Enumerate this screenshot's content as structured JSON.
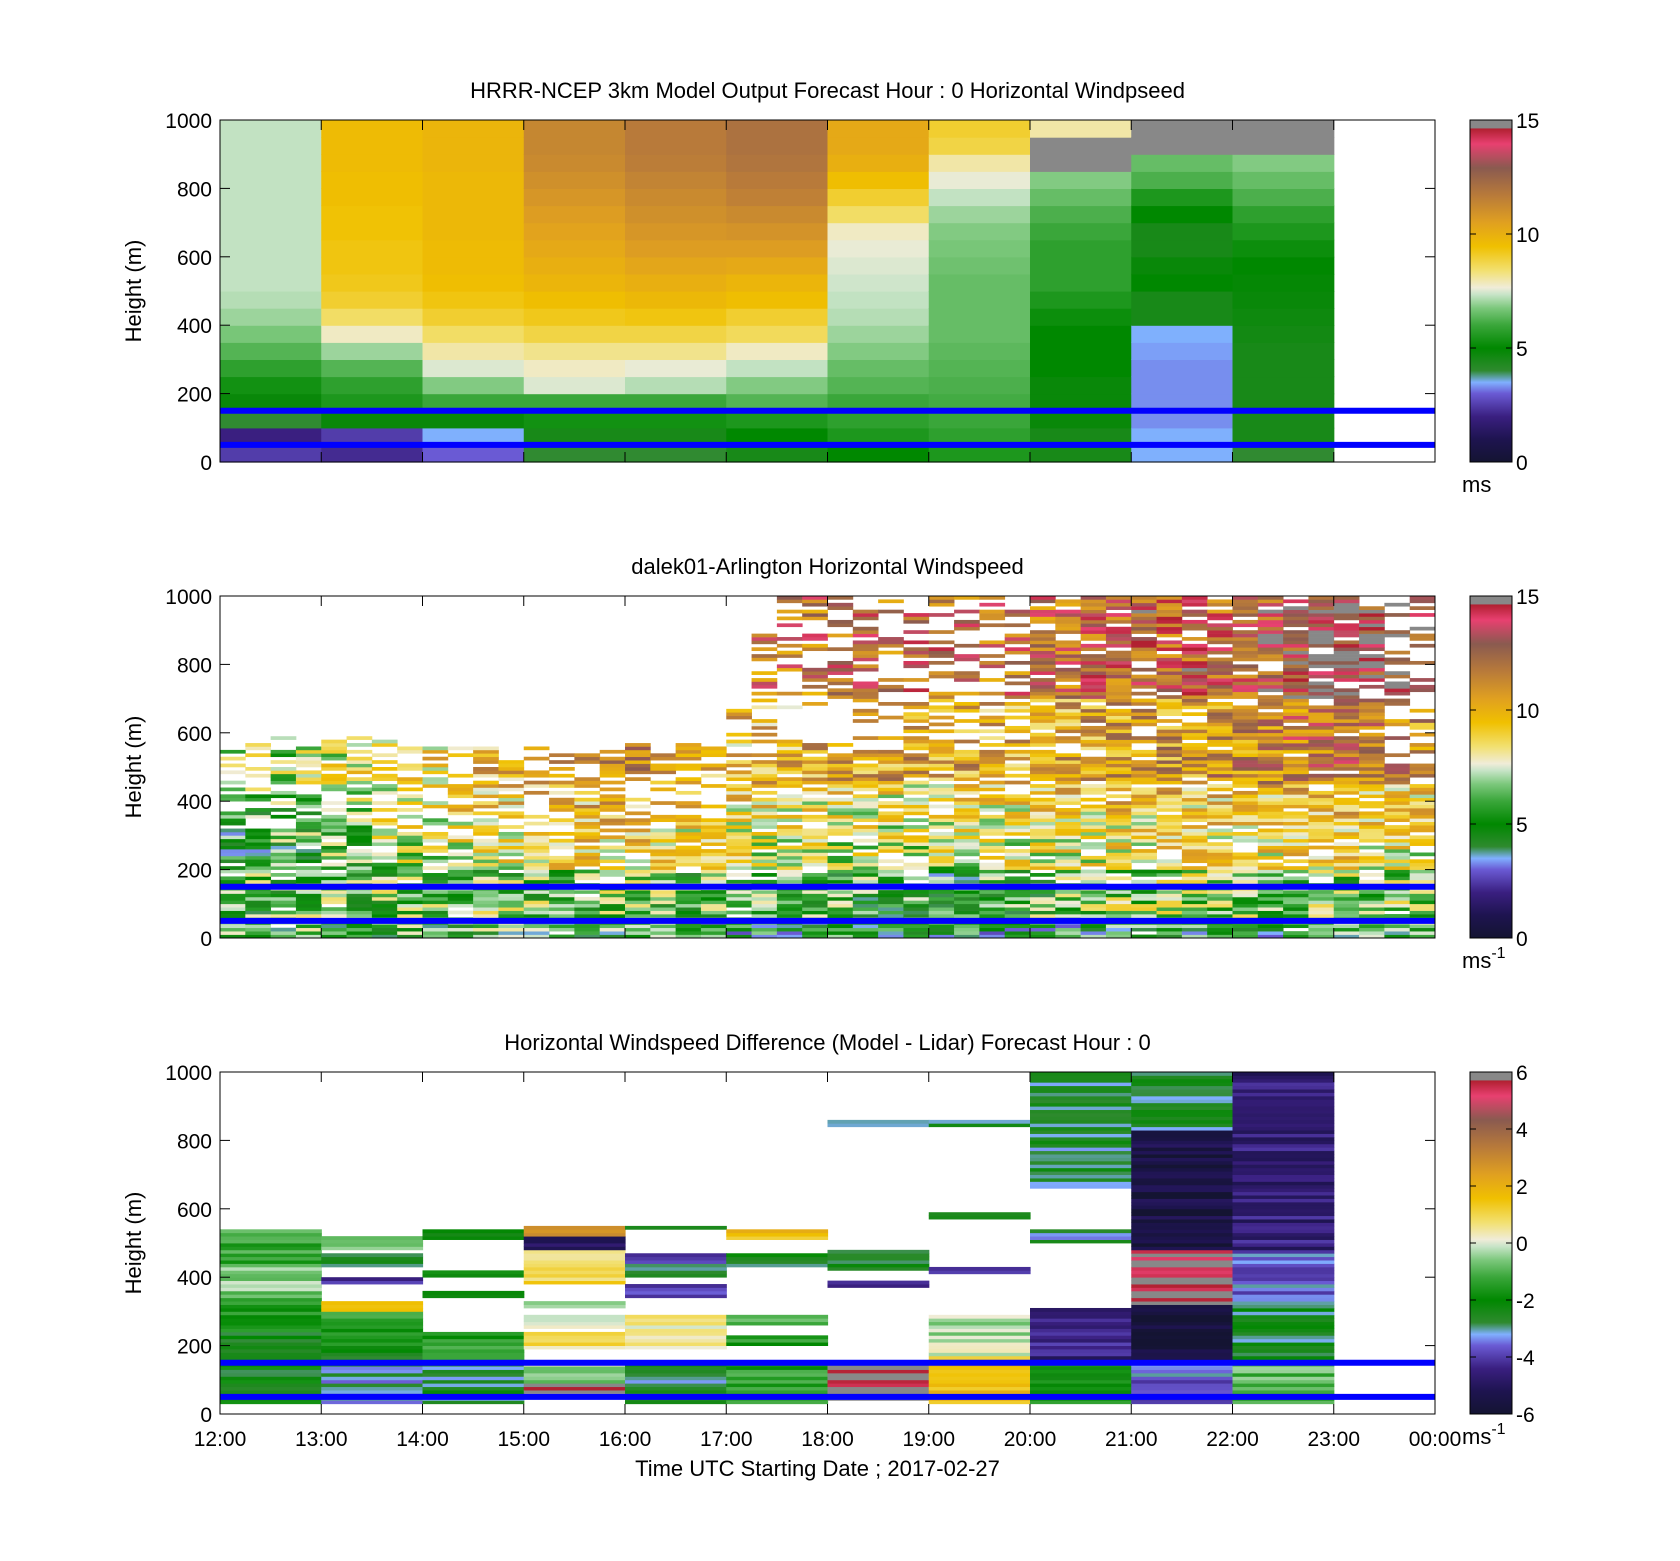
{
  "colors": {
    "lidar_line": "#0000ff",
    "colormap": [
      "#141432",
      "#3a1f80",
      "#6a5ad4",
      "#80b0ff",
      "#2f8a2f",
      "#008800",
      "#3aa63a",
      "#7cc87c",
      "#c8e4c8",
      "#f0ecd8",
      "#f2e070",
      "#f0c000",
      "#e0a020",
      "#b87a3a",
      "#8a5a50",
      "#e84070",
      "#888888"
    ]
  },
  "chart_data": [
    {
      "type": "heatmap",
      "panel": "model",
      "title": "HRRR-NCEP 3km Model Output   Forecast Hour : 0 Horizontal Windpseed",
      "xlabel": "",
      "ylabel": "Height (m)",
      "ylim": [
        0,
        1000
      ],
      "yticks": [
        "0",
        "200",
        "400",
        "600",
        "800",
        "1000"
      ],
      "xlim_hours": [
        12,
        24
      ],
      "x_hours": [
        12,
        13,
        14,
        15,
        16,
        17,
        18,
        19,
        20,
        21,
        22
      ],
      "levels_m": [
        0,
        50,
        100,
        150,
        200,
        250,
        300,
        350,
        400,
        450,
        500,
        550,
        600,
        650,
        700,
        750,
        800,
        850,
        900,
        950
      ],
      "colorbar": {
        "min": 0,
        "max": 15,
        "ticks": [
          "0",
          "5",
          "10",
          "15"
        ],
        "unit": "ms"
      },
      "z_ms": [
        [
          2.5,
          2.0,
          4.0,
          4.8,
          5.3,
          5.8,
          6.3,
          6.7,
          7.0,
          7.2,
          7.3,
          7.3,
          7.3,
          7.3,
          7.3,
          7.3,
          7.3,
          7.3,
          7.3,
          7.3
        ],
        [
          2.2,
          2.5,
          4.8,
          5.5,
          5.8,
          6.3,
          7.0,
          7.8,
          8.5,
          9.0,
          9.2,
          9.3,
          9.3,
          9.4,
          9.4,
          9.5,
          9.5,
          9.6,
          9.6,
          9.6
        ],
        [
          3.0,
          3.5,
          4.8,
          6.0,
          6.8,
          7.5,
          8.0,
          8.5,
          9.0,
          9.3,
          9.5,
          9.6,
          9.6,
          9.7,
          9.7,
          9.7,
          9.7,
          9.8,
          9.8,
          9.8
        ],
        [
          4.0,
          4.5,
          5.3,
          6.0,
          7.5,
          7.8,
          8.2,
          8.8,
          9.2,
          9.5,
          9.8,
          10.0,
          10.2,
          10.4,
          10.6,
          10.8,
          11.0,
          11.2,
          11.3,
          11.3
        ],
        [
          4.0,
          4.5,
          5.3,
          6.0,
          7.2,
          7.6,
          8.2,
          8.8,
          9.3,
          9.7,
          10.0,
          10.3,
          10.6,
          10.8,
          11.0,
          11.2,
          11.4,
          11.6,
          11.7,
          11.7
        ],
        [
          4.5,
          5.0,
          5.5,
          6.3,
          6.8,
          7.3,
          7.8,
          8.6,
          9.0,
          9.5,
          9.8,
          10.2,
          10.6,
          10.9,
          11.2,
          11.5,
          11.7,
          11.9,
          12.0,
          12.0
        ],
        [
          5.0,
          5.5,
          5.8,
          6.0,
          6.3,
          6.5,
          6.8,
          7.0,
          7.2,
          7.3,
          7.4,
          7.5,
          7.6,
          7.8,
          8.5,
          9.0,
          9.5,
          10.0,
          10.2,
          10.2
        ],
        [
          5.5,
          5.8,
          6.0,
          6.1,
          6.2,
          6.3,
          6.4,
          6.5,
          6.5,
          6.5,
          6.5,
          6.6,
          6.7,
          6.8,
          7.0,
          7.3,
          7.6,
          8.0,
          8.8,
          9.0
        ],
        [
          4.5,
          4.5,
          4.8,
          4.8,
          4.8,
          5.0,
          5.0,
          5.0,
          5.2,
          5.5,
          5.8,
          5.8,
          5.8,
          6.0,
          6.2,
          6.5,
          6.8,
          14.8,
          14.8,
          8.0
        ],
        [
          3.5,
          3.5,
          3.3,
          3.3,
          3.3,
          3.3,
          3.4,
          3.5,
          4.5,
          4.5,
          5.0,
          4.8,
          4.5,
          4.5,
          5.0,
          5.5,
          6.2,
          6.5,
          14.8,
          14.8
        ],
        [
          4.0,
          4.5,
          4.5,
          4.5,
          4.5,
          4.5,
          4.5,
          4.6,
          4.7,
          4.8,
          4.9,
          5.0,
          5.2,
          5.5,
          5.8,
          6.2,
          6.5,
          6.8,
          14.8,
          14.8
        ]
      ]
    },
    {
      "type": "heatmap",
      "panel": "lidar",
      "title": "dalek01-Arlington  Horizontal Windspeed",
      "xlabel": "",
      "ylabel": "Height (m)",
      "ylim": [
        0,
        1000
      ],
      "yticks": [
        "0",
        "200",
        "400",
        "600",
        "800",
        "1000"
      ],
      "xlim_hours": [
        12,
        24
      ],
      "colorbar": {
        "min": 0,
        "max": 15,
        "ticks": [
          "0",
          "5",
          "10",
          "15"
        ],
        "unit": "ms",
        "unit_exponent": "-1"
      },
      "max_height_profile": {
        "hours": [
          12,
          13,
          14,
          15,
          16,
          17,
          17.5,
          18,
          19,
          20,
          21,
          22,
          23,
          24
        ],
        "max_height_m": [
          560,
          600,
          560,
          560,
          560,
          570,
          1000,
          1000,
          1000,
          1000,
          1000,
          1000,
          1000,
          1000
        ]
      },
      "speed_profile_ms": {
        "hours": [
          12,
          13,
          14,
          15,
          16,
          17,
          18,
          19,
          20,
          21,
          22,
          23,
          24
        ],
        "surface": [
          5.5,
          6.0,
          6.0,
          5.8,
          5.5,
          5.0,
          5.0,
          4.8,
          5.0,
          5.5,
          5.0,
          5.5,
          6.0
        ],
        "low": [
          6.0,
          6.3,
          6.5,
          6.5,
          6.5,
          6.0,
          6.0,
          5.5,
          6.0,
          7.0,
          7.0,
          6.5,
          7.0
        ],
        "mid": [
          7.0,
          8.0,
          9.5,
          10.5,
          11.0,
          10.0,
          9.5,
          9.5,
          10.0,
          10.5,
          10.5,
          11.0,
          10.0
        ],
        "upper": [
          8.5,
          9.0,
          10.5,
          11.5,
          12.5,
          11.0,
          11.5,
          12.0,
          11.5,
          12.0,
          12.5,
          13.5,
          12.0
        ],
        "top": [
          9.0,
          9.5,
          10.5,
          11.5,
          12.0,
          11.5,
          12.0,
          12.5,
          12.0,
          12.5,
          12.5,
          14.0,
          13.0
        ]
      }
    },
    {
      "type": "heatmap",
      "panel": "difference",
      "title": "Horizontal Windspeed Difference (Model - Lidar) Forecast Hour : 0",
      "xlabel": "Time UTC  Starting Date ; 2017-02-27",
      "ylabel": "Height (m)",
      "ylim": [
        0,
        1000
      ],
      "yticks": [
        "0",
        "200",
        "400",
        "600",
        "800",
        "1000"
      ],
      "xlim_hours": [
        12,
        24
      ],
      "xticks": [
        "12:00",
        "13:00",
        "14:00",
        "15:00",
        "16:00",
        "17:00",
        "18:00",
        "19:00",
        "20:00",
        "21:00",
        "22:00",
        "23:00",
        "00:00"
      ],
      "colorbar": {
        "min": -6,
        "max": 6,
        "ticks": [
          "-6",
          "-4",
          "-2",
          "0",
          "2",
          "4",
          "6"
        ],
        "unit": "ms",
        "unit_exponent": "-1"
      },
      "columns": [
        {
          "hour": 12,
          "bands": [
            [
              30,
              240,
              -2.3
            ],
            [
              240,
              340,
              -1.5
            ],
            [
              340,
              440,
              -0.6
            ],
            [
              440,
              540,
              -1.2
            ]
          ]
        },
        {
          "hour": 13,
          "bands": [
            [
              30,
              60,
              -3.5
            ],
            [
              60,
              150,
              -3.0
            ],
            [
              150,
              200,
              -2.3
            ],
            [
              200,
              300,
              -1.5
            ],
            [
              300,
              330,
              1.0
            ],
            [
              380,
              400,
              -4.0
            ],
            [
              430,
              470,
              -2.5
            ],
            [
              480,
              520,
              -0.4
            ]
          ]
        },
        {
          "hour": 14,
          "bands": [
            [
              30,
              150,
              -2.7
            ],
            [
              150,
              240,
              -1.5
            ],
            [
              340,
              360,
              -2.5
            ],
            [
              400,
              420,
              -2.2
            ],
            [
              510,
              540,
              -2.0
            ]
          ]
        },
        {
          "hour": 15,
          "bands": [
            [
              60,
              90,
              5.8
            ],
            [
              90,
              150,
              -0.4
            ],
            [
              190,
              240,
              0.8
            ],
            [
              250,
              290,
              0.4
            ],
            [
              310,
              330,
              -0.3
            ],
            [
              380,
              480,
              0.9
            ],
            [
              480,
              520,
              -5.0
            ],
            [
              520,
              550,
              2.5
            ]
          ]
        },
        {
          "hour": 16,
          "bands": [
            [
              30,
              150,
              -2.8
            ],
            [
              190,
              290,
              0.3
            ],
            [
              340,
              380,
              -3.8
            ],
            [
              400,
              440,
              -3.0
            ],
            [
              440,
              470,
              -4.0
            ],
            [
              540,
              550,
              -2.0
            ]
          ]
        },
        {
          "hour": 17,
          "bands": [
            [
              30,
              150,
              -1.5
            ],
            [
              200,
              230,
              -1.5
            ],
            [
              260,
              290,
              -1.0
            ],
            [
              430,
              470,
              -2.5
            ],
            [
              510,
              540,
              1.5
            ]
          ]
        },
        {
          "hour": 18,
          "bands": [
            [
              40,
              150,
              5.8
            ],
            [
              370,
              390,
              -4.5
            ],
            [
              420,
              480,
              -2.7
            ],
            [
              840,
              860,
              -2.8
            ]
          ]
        },
        {
          "hour": 19,
          "bands": [
            [
              30,
              170,
              1.5
            ],
            [
              170,
              290,
              -0.2
            ],
            [
              410,
              430,
              -4.0
            ],
            [
              570,
              590,
              -2.5
            ],
            [
              840,
              860,
              -2.8
            ]
          ]
        },
        {
          "hour": 20,
          "bands": [
            [
              30,
              150,
              -1.8
            ],
            [
              150,
              310,
              -4.5
            ],
            [
              500,
              540,
              -3.0
            ],
            [
              660,
              1000,
              -2.8
            ]
          ]
        },
        {
          "hour": 21,
          "bands": [
            [
              30,
              150,
              -3.6
            ],
            [
              150,
              320,
              -5.8
            ],
            [
              320,
              480,
              5.8
            ],
            [
              480,
              830,
              -5.5
            ],
            [
              830,
              1000,
              -2.8
            ]
          ]
        },
        {
          "hour": 22,
          "bands": [
            [
              30,
              150,
              -1.0
            ],
            [
              150,
              330,
              -2.6
            ],
            [
              330,
              480,
              -3.5
            ],
            [
              480,
              1000,
              -4.6
            ]
          ]
        }
      ]
    }
  ]
}
